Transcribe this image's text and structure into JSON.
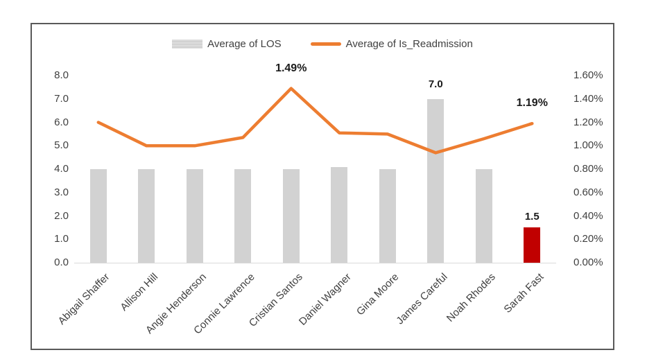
{
  "window": {
    "background": "#ffffff",
    "border_color": "#595959"
  },
  "legend": [
    {
      "label": "Average of LOS",
      "swatch": "bar-swatch",
      "color": "#d2d2d2"
    },
    {
      "label": "Average of Is_Readmission",
      "swatch": "line-swatch",
      "color": "#ed7d31"
    }
  ],
  "chart_data": {
    "type": "combo",
    "title": "",
    "grid": false,
    "legend_position": "top-center",
    "categories": [
      "Abigail Shaffer",
      "Allison Hill",
      "Angie Henderson",
      "Connie Lawrence",
      "Cristian Santos",
      "Daniel Wagner",
      "Gina Moore",
      "James Careful",
      "Noah Rhodes",
      "Sarah Fast"
    ],
    "series": [
      {
        "name": "Average of LOS",
        "type": "bar",
        "axis": "left",
        "color": "#d2d2d2",
        "values": [
          4.0,
          4.0,
          4.0,
          4.0,
          4.0,
          4.1,
          4.0,
          7.0,
          4.0,
          1.5
        ],
        "highlight": {
          "index": 9,
          "color": "#c00000"
        }
      },
      {
        "name": "Average of Is_Readmission",
        "type": "line",
        "axis": "right",
        "color": "#ed7d31",
        "unit": "%",
        "values": [
          1.2,
          1.0,
          1.0,
          1.07,
          1.49,
          1.11,
          1.1,
          0.94,
          1.06,
          1.19
        ]
      }
    ],
    "left_axis": {
      "min": 0,
      "max": 8,
      "tick_labels": [
        "8.0",
        "7.0",
        "6.0",
        "5.0",
        "4.0",
        "3.0",
        "2.0",
        "1.0",
        "0.0"
      ]
    },
    "right_axis": {
      "min": 0,
      "max": 1.6,
      "tick_labels": [
        "1.60%",
        "1.40%",
        "1.20%",
        "1.00%",
        "0.80%",
        "0.60%",
        "0.40%",
        "0.20%",
        "0.00%"
      ]
    },
    "annotations": [
      {
        "text": "1.49%",
        "target": "line",
        "category_index": 4
      },
      {
        "text": "7.0",
        "target": "bar",
        "category_index": 7
      },
      {
        "text": "1.19%",
        "target": "line",
        "category_index": 9
      },
      {
        "text": "1.5",
        "target": "bar",
        "category_index": 9
      }
    ]
  }
}
